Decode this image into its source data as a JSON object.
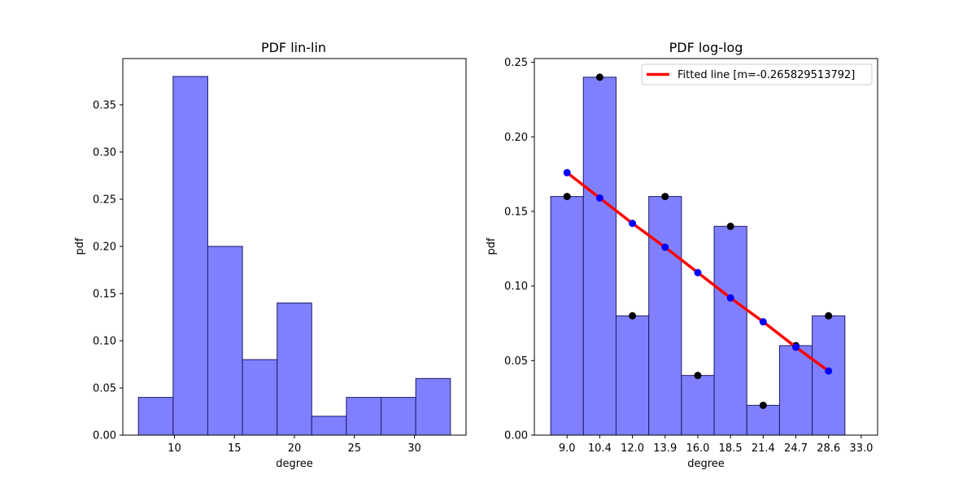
{
  "chart_data": [
    {
      "type": "bar",
      "title": "PDF lin-lin",
      "xlabel": "degree",
      "ylabel": "pdf",
      "xlim": [
        5.7,
        34.3
      ],
      "ylim": [
        0,
        0.399
      ],
      "xticks": [
        10,
        15,
        20,
        25,
        30
      ],
      "xtick_labels": [
        "10",
        "15",
        "20",
        "25",
        "30"
      ],
      "yticks": [
        0.0,
        0.05,
        0.1,
        0.15,
        0.2,
        0.25,
        0.3,
        0.35
      ],
      "ytick_labels": [
        "0.00",
        "0.05",
        "0.10",
        "0.15",
        "0.20",
        "0.25",
        "0.30",
        "0.35"
      ],
      "bin_edges": [
        7.0,
        9.89,
        12.78,
        15.67,
        18.56,
        21.44,
        24.33,
        27.22,
        30.11,
        33.0
      ],
      "values": [
        0.04,
        0.38,
        0.2,
        0.08,
        0.14,
        0.02,
        0.04,
        0.04,
        0.06
      ],
      "bar_color": "#8080ff",
      "edge_color": "#1a1a66",
      "grid": false
    },
    {
      "type": "bar",
      "title": "PDF log-log",
      "xlabel": "degree",
      "ylabel": "pdf",
      "xlim": [
        -0.5,
        10.0
      ],
      "ylim": [
        0,
        0.2525
      ],
      "xticks": [
        0.5,
        1.5,
        2.5,
        3.5,
        4.5,
        5.5,
        6.5,
        7.5,
        8.5,
        9.5
      ],
      "xtick_labels": [
        "9.0",
        "10.4",
        "12.0",
        "13.9",
        "16.0",
        "18.5",
        "21.4",
        "24.7",
        "28.6",
        "33.0"
      ],
      "yticks": [
        0.0,
        0.05,
        0.1,
        0.15,
        0.2,
        0.25
      ],
      "ytick_labels": [
        "0.00",
        "0.05",
        "0.10",
        "0.15",
        "0.20",
        "0.25"
      ],
      "values": [
        0.16,
        0.24,
        0.08,
        0.16,
        0.04,
        0.14,
        0.02,
        0.06,
        0.08
      ],
      "bar_color": "#8080ff",
      "edge_color": "#1a1a66",
      "scatter_color": "#000000",
      "fit": {
        "name": "Fitted line [m=-0.265829513792]",
        "values": [
          0.176,
          0.159,
          0.142,
          0.126,
          0.109,
          0.092,
          0.076,
          0.059,
          0.043
        ],
        "color": "#ff0000",
        "marker_color": "#0000ff"
      },
      "legend_position": "upper right",
      "grid": false
    }
  ]
}
